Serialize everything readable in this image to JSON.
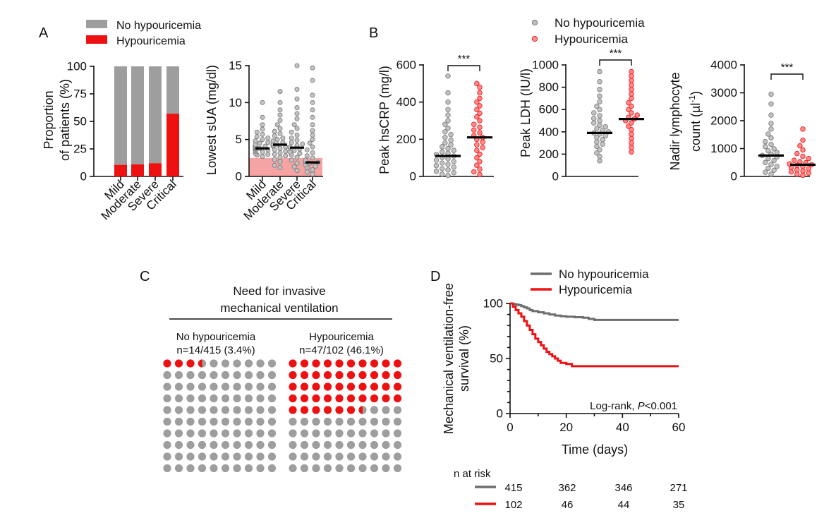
{
  "colors": {
    "no": "#9e9e9e",
    "hypo": "#ee1111",
    "km_no": "#6e6e6e",
    "hypo_band": "#f5a3a3",
    "median": "#000000",
    "axis": "#111111"
  },
  "chart_data": [
    {
      "panel": "A",
      "type": "bar",
      "stacked": true,
      "title": "",
      "legend": [
        "No hypouricemia",
        "Hypouricemia"
      ],
      "ylabel": [
        "Proportion",
        "of patients (%)"
      ],
      "xlabel": "",
      "categories": [
        "Mild",
        "Moderate",
        "Severe",
        "Critical"
      ],
      "ylim": [
        0,
        100
      ],
      "yticks": [
        "0",
        "25",
        "50",
        "75",
        "100"
      ],
      "series": [
        {
          "name": "Hypouricemia",
          "values": [
            10.5,
            11,
            12,
            57
          ]
        },
        {
          "name": "No hypouricemia",
          "values": [
            89.5,
            89,
            88,
            43
          ]
        }
      ]
    },
    {
      "panel": "A",
      "type": "scatter",
      "title": "",
      "ylabel": "Lowest sUA (mg/dl)",
      "categories": [
        "Mild",
        "Moderate",
        "Severe",
        "Critical"
      ],
      "ylim": [
        0,
        15
      ],
      "yticks": [
        "0",
        "5",
        "10",
        "15"
      ],
      "hypouricemia_threshold": 2.5,
      "medians": [
        3.8,
        4.3,
        3.9,
        1.9
      ],
      "series": [
        {
          "name": "Mild",
          "values": [
            2.7,
            2.9,
            3.0,
            3.1,
            3.3,
            3.4,
            3.5,
            3.6,
            3.7,
            3.8,
            3.8,
            3.9,
            4.0,
            4.1,
            4.2,
            4.3,
            4.5,
            4.6,
            4.8,
            5.0,
            5.2,
            5.4,
            5.7,
            6.0,
            6.4,
            7.0,
            8.0,
            10.0
          ]
        },
        {
          "name": "Moderate",
          "values": [
            1.2,
            1.5,
            2.0,
            2.3,
            2.6,
            2.8,
            3.0,
            3.2,
            3.4,
            3.6,
            3.8,
            4.0,
            4.1,
            4.2,
            4.3,
            4.4,
            4.6,
            4.8,
            5.0,
            5.2,
            5.5,
            5.8,
            6.1,
            6.5,
            7.0,
            7.6,
            8.3,
            9.0,
            10.0,
            11.5
          ]
        },
        {
          "name": "Severe",
          "values": [
            0.8,
            1.3,
            1.8,
            2.2,
            2.6,
            2.9,
            3.1,
            3.3,
            3.5,
            3.7,
            3.9,
            4.0,
            4.2,
            4.4,
            4.6,
            4.9,
            5.2,
            5.6,
            6.0,
            6.5,
            7.0,
            7.8,
            8.5,
            9.3,
            10.5,
            11.8,
            15.0
          ]
        },
        {
          "name": "Critical",
          "values": [
            0.3,
            0.6,
            0.9,
            1.2,
            1.4,
            1.6,
            1.8,
            1.9,
            2.0,
            2.2,
            2.5,
            2.8,
            3.2,
            3.6,
            4.0,
            4.5,
            5.0,
            5.6,
            6.2,
            7.0,
            8.0,
            9.0,
            10.0,
            11.0,
            13.0,
            14.7
          ]
        }
      ]
    },
    {
      "panel": "B",
      "type": "scatter",
      "title": "",
      "legend": [
        "No hypouricemia",
        "Hypouricemia"
      ],
      "ylabel": "Peak hsCRP (mg/l)",
      "categories": [
        "No hypouricemia",
        "Hypouricemia"
      ],
      "ylim": [
        0,
        600
      ],
      "yticks": [
        "0",
        "200",
        "400",
        "600"
      ],
      "significance": "***",
      "medians": [
        110,
        210
      ],
      "series": [
        {
          "name": "No hypouricemia",
          "values": [
            5,
            12,
            20,
            28,
            35,
            42,
            50,
            58,
            65,
            72,
            80,
            88,
            95,
            102,
            110,
            118,
            125,
            132,
            140,
            150,
            160,
            170,
            180,
            195,
            210,
            225,
            240,
            260,
            280,
            300,
            330,
            360,
            400,
            450,
            540
          ]
        },
        {
          "name": "Hypouricemia",
          "values": [
            10,
            25,
            40,
            60,
            80,
            100,
            120,
            140,
            155,
            170,
            185,
            200,
            210,
            220,
            235,
            250,
            265,
            280,
            300,
            320,
            340,
            360,
            380,
            400,
            420,
            450,
            480,
            500
          ]
        }
      ]
    },
    {
      "panel": "B",
      "type": "scatter",
      "title": "",
      "ylabel": "Peak LDH (IU/l)",
      "categories": [
        "No hypouricemia",
        "Hypouricemia"
      ],
      "ylim": [
        0,
        1000
      ],
      "yticks": [
        "0",
        "200",
        "400",
        "600",
        "800",
        "1000"
      ],
      "significance": "***",
      "medians": [
        390,
        515
      ],
      "series": [
        {
          "name": "No hypouricemia",
          "values": [
            140,
            180,
            210,
            240,
            270,
            290,
            310,
            330,
            350,
            365,
            380,
            390,
            400,
            415,
            430,
            445,
            460,
            480,
            500,
            520,
            545,
            570,
            600,
            630,
            670,
            720,
            780,
            850,
            940
          ]
        },
        {
          "name": "Hypouricemia",
          "values": [
            220,
            260,
            300,
            340,
            380,
            420,
            450,
            480,
            500,
            515,
            530,
            550,
            570,
            600,
            630,
            660,
            700,
            740,
            780,
            820,
            860,
            900,
            940
          ]
        }
      ]
    },
    {
      "panel": "B",
      "type": "scatter",
      "title": "",
      "ylabel": [
        "Nadir lymphocyte",
        "count (µl"
      ],
      "ylabel_sup": "-1",
      "ylabel_tail": ")",
      "categories": [
        "No hypouricemia",
        "Hypouricemia"
      ],
      "ylim": [
        0,
        4000
      ],
      "yticks": [
        "0",
        "1000",
        "2000",
        "3000",
        "4000"
      ],
      "significance": "***",
      "medians": [
        750,
        420
      ],
      "series": [
        {
          "name": "No hypouricemia",
          "values": [
            80,
            150,
            220,
            290,
            360,
            430,
            500,
            570,
            640,
            700,
            750,
            800,
            860,
            920,
            990,
            1070,
            1150,
            1250,
            1380,
            1520,
            1700,
            1900,
            2200,
            2600,
            2950
          ]
        },
        {
          "name": "Hypouricemia",
          "values": [
            40,
            80,
            120,
            160,
            200,
            240,
            280,
            320,
            360,
            400,
            420,
            450,
            490,
            530,
            580,
            640,
            720,
            820,
            950,
            1100,
            1300,
            1700
          ]
        }
      ]
    },
    {
      "panel": "C",
      "type": "waffle",
      "title": [
        "Need for invasive",
        "mechanical ventilation"
      ],
      "groups": [
        {
          "label": "No hypouricemia",
          "subtitle": "n=14/415 (3.4%)",
          "percent": 3.4
        },
        {
          "label": "Hypouricemia",
          "subtitle": "n=47/102 (46.1%)",
          "percent": 46.1
        }
      ]
    },
    {
      "panel": "D",
      "type": "line",
      "step": true,
      "title": "",
      "legend": [
        "No hypouricemia",
        "Hypouricemia"
      ],
      "xlabel": "Time (days)",
      "ylabel": [
        "Mechanical ventilation-free",
        "survival (%)"
      ],
      "xlim": [
        0,
        60
      ],
      "ylim": [
        0,
        100
      ],
      "xticks": [
        "0",
        "20",
        "40",
        "60"
      ],
      "yticks": [
        "0",
        "50",
        "100"
      ],
      "annotation_text": "Log-rank, ",
      "annotation_p": "P",
      "annotation_tail": "<0.001",
      "series": [
        {
          "name": "No hypouricemia",
          "x": [
            0,
            1,
            2,
            3,
            4,
            5,
            6,
            7,
            8,
            10,
            12,
            14,
            16,
            18,
            20,
            23,
            26,
            28,
            30,
            60
          ],
          "y": [
            100,
            99.5,
            99,
            98.5,
            97.5,
            96.5,
            95.5,
            94,
            93,
            92,
            91,
            90,
            89,
            88.5,
            88,
            87.5,
            87,
            86,
            85,
            85
          ]
        },
        {
          "name": "Hypouricemia",
          "x": [
            0,
            1,
            2,
            3,
            4,
            5,
            6,
            7,
            8,
            9,
            10,
            11,
            12,
            13,
            14,
            15,
            16,
            17,
            18,
            20,
            22,
            60
          ],
          "y": [
            100,
            97,
            94,
            91,
            88,
            84,
            80,
            76,
            72,
            68,
            65,
            62,
            59,
            56,
            54,
            52,
            50,
            48,
            46,
            45,
            43,
            43
          ]
        }
      ],
      "n_at_risk_label": "n at risk",
      "n_at_risk": [
        {
          "name": "No hypouricemia",
          "values": [
            "415",
            "362",
            "346",
            "271"
          ]
        },
        {
          "name": "Hypouricemia",
          "values": [
            "102",
            "46",
            "44",
            "35"
          ]
        }
      ]
    }
  ],
  "panel_labels": [
    "A",
    "B",
    "C",
    "D"
  ]
}
